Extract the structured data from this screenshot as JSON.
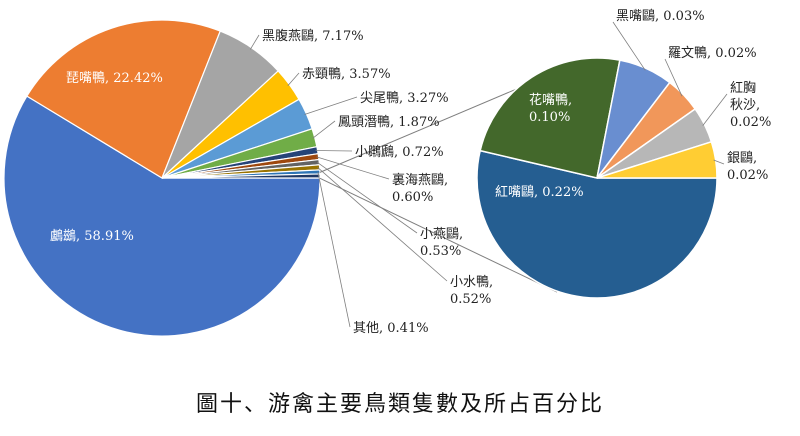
{
  "caption": "圖十、游禽主要鳥類隻數及所占百分比",
  "chart_data": [
    {
      "type": "pie",
      "title": "",
      "slices": [
        {
          "label": "鸕鷀",
          "value": 58.91,
          "text": "鸕鷀, 58.91%",
          "color": "#4472c4"
        },
        {
          "label": "琵嘴鴨",
          "value": 22.42,
          "text": "琵嘴鴨, 22.42%",
          "color": "#ed7d31"
        },
        {
          "label": "黑腹燕鷗",
          "value": 7.17,
          "text": "黑腹燕鷗, 7.17%",
          "color": "#a5a5a5"
        },
        {
          "label": "赤頸鴨",
          "value": 3.57,
          "text": "赤頸鴨, 3.57%",
          "color": "#ffc000"
        },
        {
          "label": "尖尾鴨",
          "value": 3.27,
          "text": "尖尾鴨, 3.27%",
          "color": "#5b9bd5"
        },
        {
          "label": "鳳頭潛鴨",
          "value": 1.87,
          "text": "鳳頭潛鴨, 1.87%",
          "color": "#70ad47"
        },
        {
          "label": "小鸊鷉",
          "value": 0.72,
          "text": "小鸊鷉, 0.72%",
          "color": "#264478"
        },
        {
          "label": "裏海燕鷗",
          "value": 0.6,
          "text": "裏海燕鷗, 0.60%",
          "color": "#9e480e"
        },
        {
          "label": "小燕鷗",
          "value": 0.53,
          "text": "小燕鷗, 0.53%",
          "color": "#636363"
        },
        {
          "label": "小水鴨",
          "value": 0.52,
          "text": "小水鴨, 0.52%",
          "color": "#997300"
        },
        {
          "label": "其他",
          "value": 0.41,
          "text": "其他, 0.41%",
          "color": "#2e75b6"
        }
      ]
    },
    {
      "type": "pie",
      "title": "",
      "slices": [
        {
          "label": "紅嘴鷗",
          "value": 0.22,
          "text": "紅嘴鷗, 0.22%",
          "color": "#255e91"
        },
        {
          "label": "花嘴鴨",
          "value": 0.1,
          "text": "花嘴鴨, 0.10%",
          "color": "#43682b"
        },
        {
          "label": "黑嘴鷗",
          "value": 0.03,
          "text": "黑嘴鷗, 0.03%",
          "color": "#698ed0"
        },
        {
          "label": "羅文鴨",
          "value": 0.02,
          "text": "羅文鴨, 0.02%",
          "color": "#f1975a"
        },
        {
          "label": "紅胸秋沙",
          "value": 0.02,
          "text": "紅胸秋沙, 0.02%",
          "color": "#b7b7b7"
        },
        {
          "label": "銀鷗",
          "value": 0.02,
          "text": "銀鷗, 0.02%",
          "color": "#ffcd33"
        }
      ]
    }
  ]
}
